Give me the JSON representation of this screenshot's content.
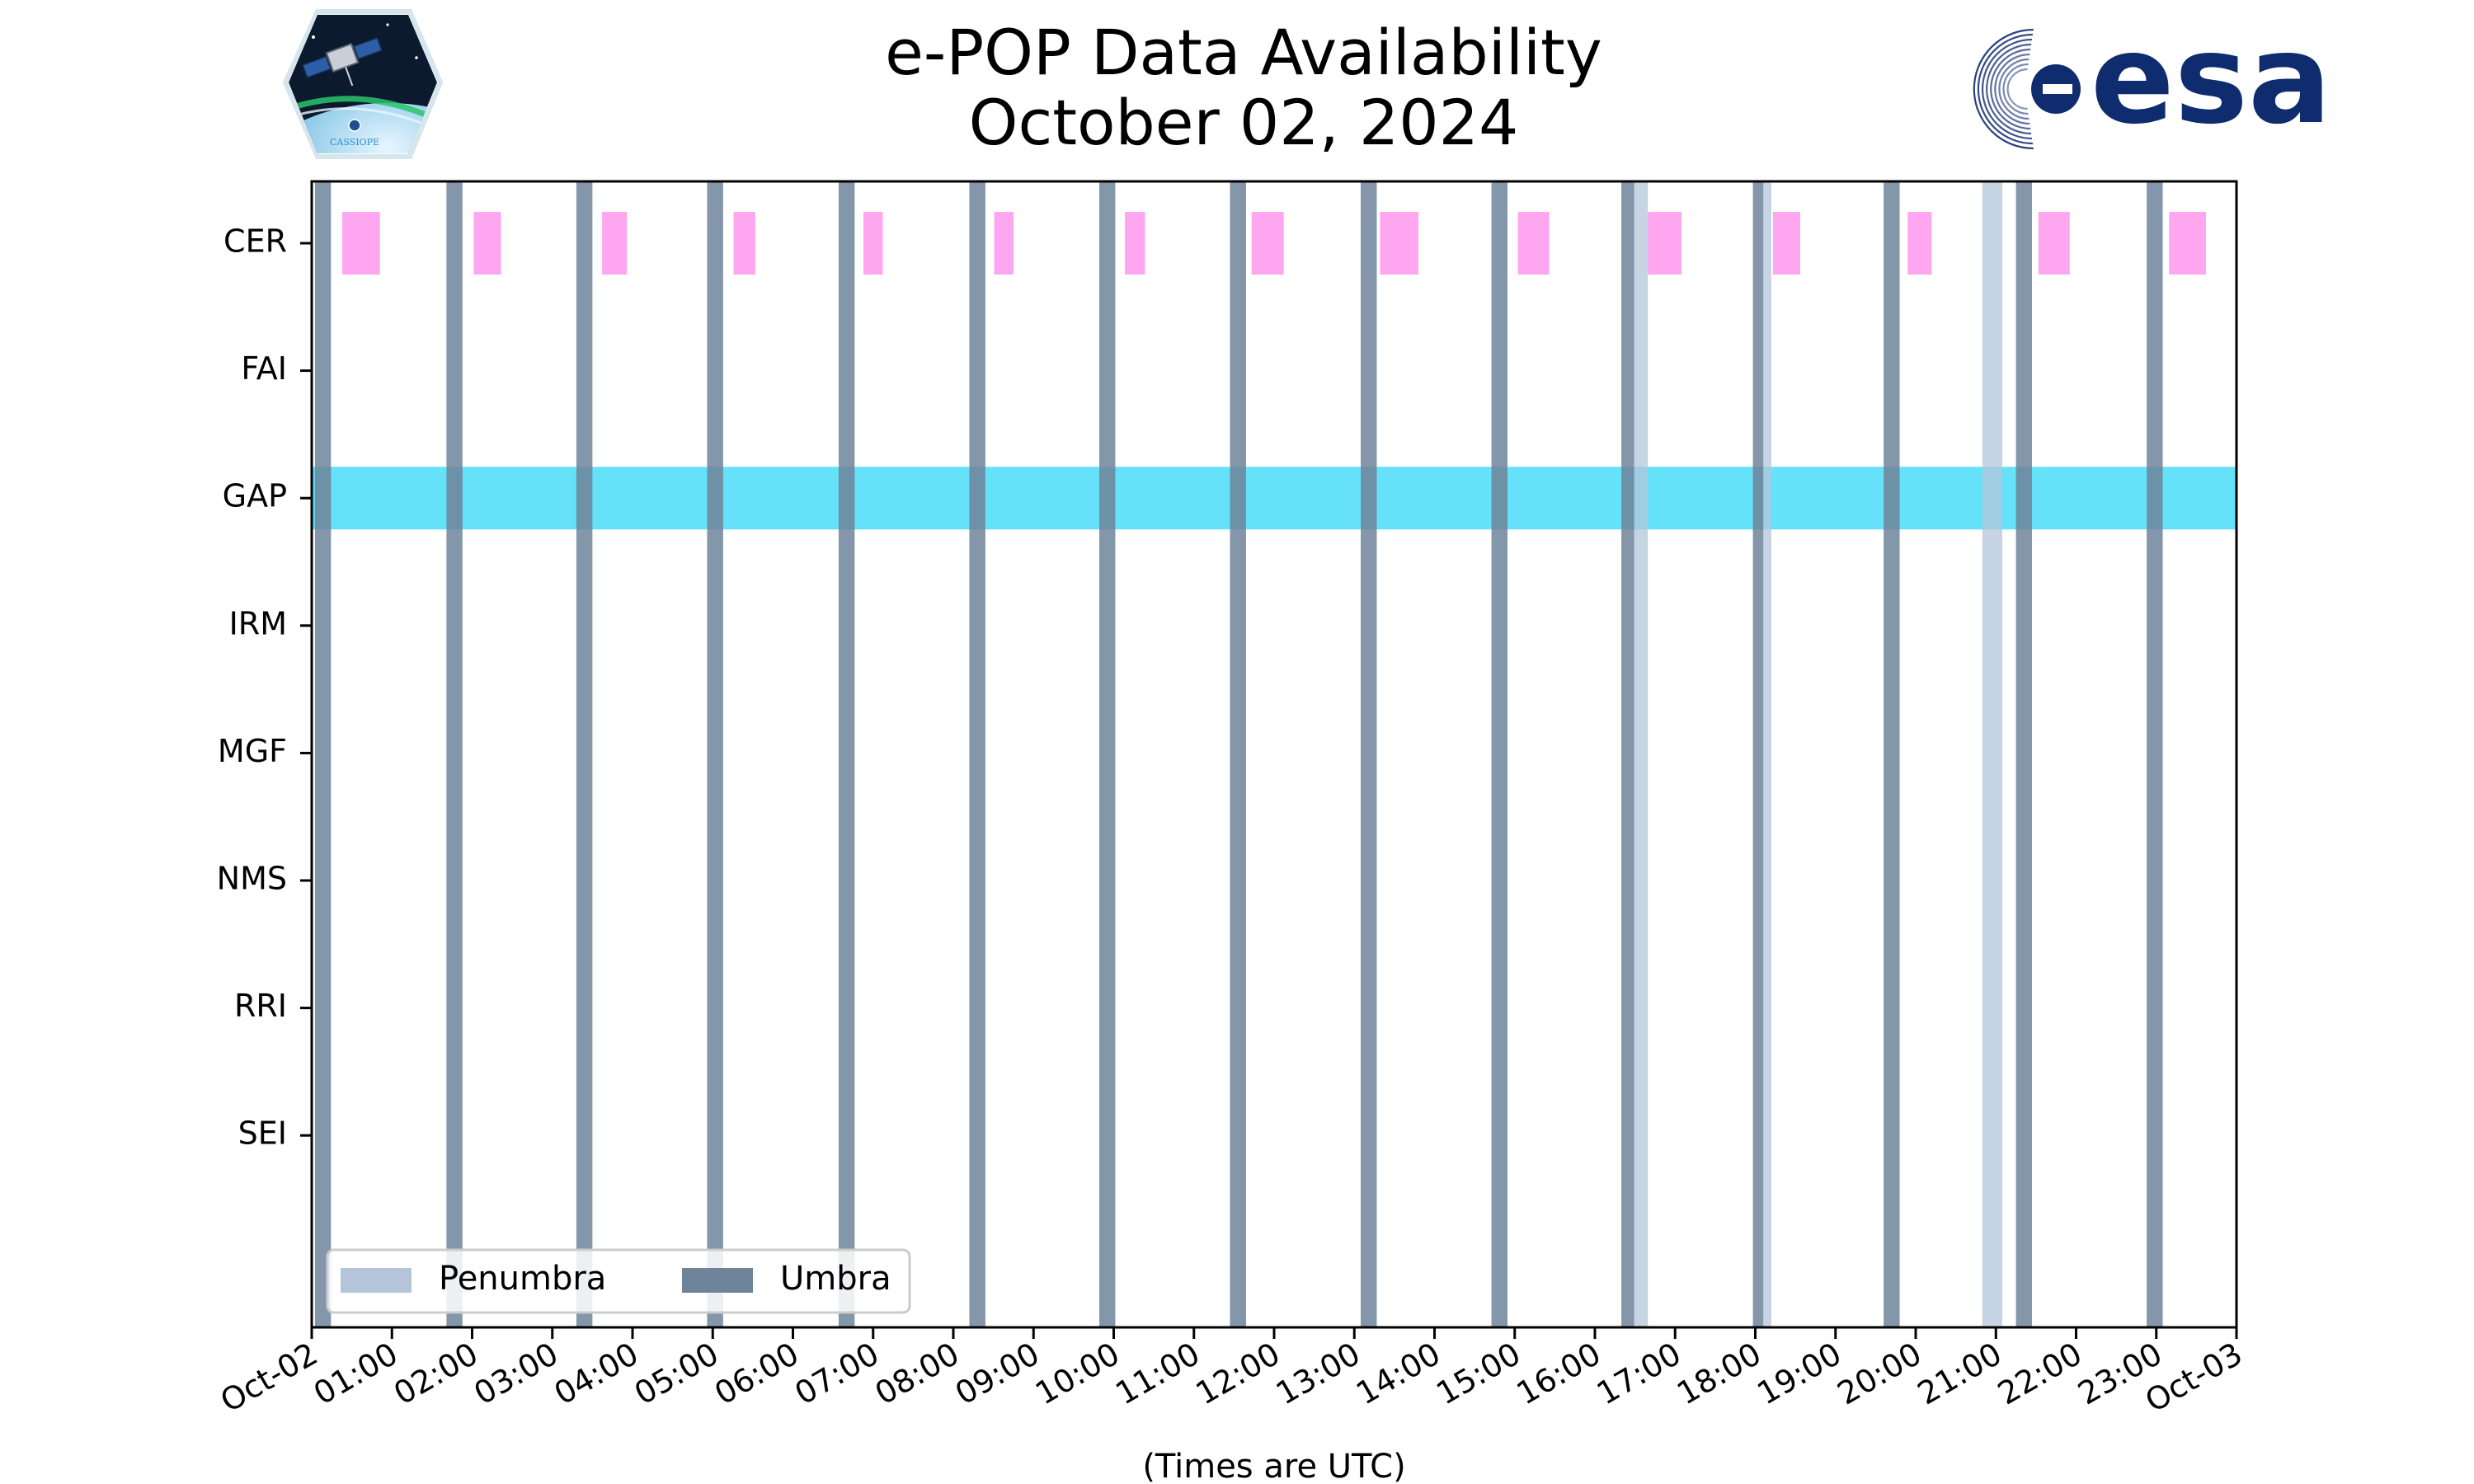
{
  "chart_data": {
    "type": "timeline",
    "title": [
      "e-POP Data Availability",
      "October 02, 2024"
    ],
    "xlabel": "(Times are UTC)",
    "xlim_hours": [
      0,
      24
    ],
    "xtick_labels": [
      "Oct-02",
      "01:00",
      "02:00",
      "03:00",
      "04:00",
      "05:00",
      "06:00",
      "07:00",
      "08:00",
      "09:00",
      "10:00",
      "11:00",
      "12:00",
      "13:00",
      "14:00",
      "15:00",
      "16:00",
      "17:00",
      "18:00",
      "19:00",
      "20:00",
      "21:00",
      "22:00",
      "23:00",
      "Oct-03"
    ],
    "instruments": [
      "CER",
      "FAI",
      "GAP",
      "IRM",
      "MGF",
      "NMS",
      "RRI",
      "SEI"
    ],
    "availability": {
      "CER": [
        [
          0.38,
          0.85
        ],
        [
          2.02,
          2.36
        ],
        [
          3.62,
          3.93
        ],
        [
          5.26,
          5.53
        ],
        [
          6.88,
          7.12
        ],
        [
          8.51,
          8.75
        ],
        [
          10.14,
          10.39
        ],
        [
          11.72,
          12.12
        ],
        [
          13.32,
          13.8
        ],
        [
          15.04,
          15.43
        ],
        [
          16.66,
          17.08
        ],
        [
          18.22,
          18.56
        ],
        [
          19.9,
          20.2
        ],
        [
          21.53,
          21.92
        ],
        [
          23.16,
          23.62
        ]
      ],
      "FAI": [],
      "GAP": [
        [
          0,
          24
        ]
      ],
      "IRM": [],
      "MGF": [],
      "NMS": [],
      "RRI": [],
      "SEI": []
    },
    "umbra": [
      [
        0.04,
        0.24
      ],
      [
        1.68,
        1.88
      ],
      [
        3.3,
        3.5
      ],
      [
        4.93,
        5.13
      ],
      [
        6.57,
        6.77
      ],
      [
        8.2,
        8.4
      ],
      [
        9.82,
        10.02
      ],
      [
        11.45,
        11.65
      ],
      [
        13.08,
        13.28
      ],
      [
        14.71,
        14.91
      ],
      [
        16.33,
        16.49
      ],
      [
        17.97,
        18.1
      ],
      [
        19.6,
        19.8
      ],
      [
        21.25,
        21.45
      ],
      [
        22.88,
        23.08
      ]
    ],
    "penumbra": [
      [
        16.49,
        16.66
      ],
      [
        18.1,
        18.2
      ],
      [
        20.83,
        21.08
      ]
    ],
    "legend": {
      "position": "lower-left",
      "entries": [
        "Penumbra",
        "Umbra"
      ]
    },
    "colors": {
      "umbra": "#6f849a",
      "penumbra": "#b4c5d9",
      "cer": "#ff9cf0",
      "gap": "#3fd9f8",
      "gap_dark": "#3ad2f7"
    },
    "grid": false
  },
  "logos": {
    "left": {
      "name": "cassiope-mission-logo",
      "caption": "CASSIOPE"
    },
    "right": {
      "name": "esa-logo",
      "text": "esa"
    }
  }
}
